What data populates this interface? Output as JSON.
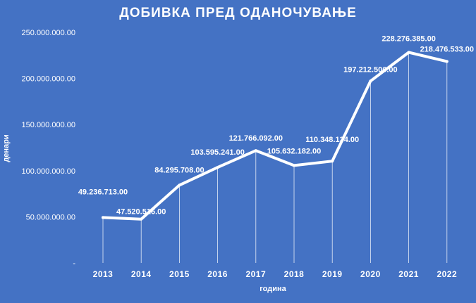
{
  "colors": {
    "background": "#4472C4",
    "line": "#ffffff",
    "text": "#ffffff"
  },
  "chart_data": {
    "type": "line",
    "title": "ДОБИВКА ПРЕД ОДАНОЧУВАЊЕ",
    "xlabel": "година",
    "ylabel": "денари",
    "categories": [
      "2013",
      "2014",
      "2015",
      "2016",
      "2017",
      "2018",
      "2019",
      "2020",
      "2021",
      "2022"
    ],
    "values": [
      49236713,
      47520516,
      84295708,
      103595241,
      121766092,
      105632182,
      110348134,
      197212506,
      228276385,
      218476533
    ],
    "data_labels": [
      "49.236.713.00",
      "47.520.516.00",
      "84.295.708.00",
      "103.595.241.00",
      "121.766.092.00",
      "105.632.182.00",
      "110.348.134.00",
      "197.212.506.00",
      "228.276.385.00",
      "218.476.533.00"
    ],
    "y_ticks": [
      0,
      50000000,
      100000000,
      150000000,
      200000000,
      250000000
    ],
    "y_tick_labels": [
      "-",
      "50.000.000.00",
      "100.000.000.00",
      "150.000.000.00",
      "200.000.000.00",
      "250.000.000.00"
    ],
    "ylim": [
      0,
      250000000
    ],
    "grid": false,
    "drop_lines": true,
    "legend": "none"
  }
}
